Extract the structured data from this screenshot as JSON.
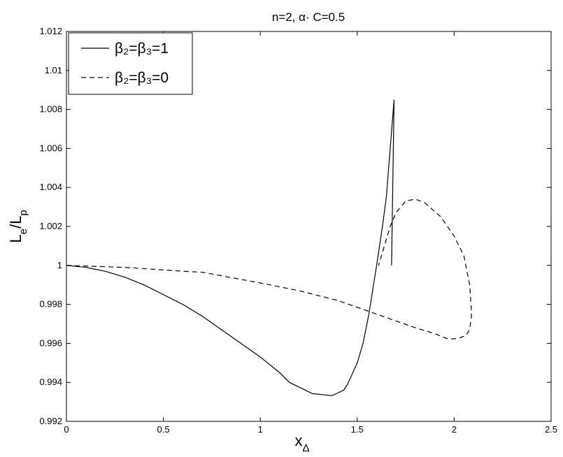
{
  "chart_data": {
    "type": "line",
    "title": "n=2, α· C=0.5",
    "xlabel": [
      "x",
      "Δ"
    ],
    "ylabel": [
      "L",
      "e",
      "/L",
      "p"
    ],
    "xlim": [
      0,
      2.5
    ],
    "xticks": [
      0,
      0.5,
      1,
      1.5,
      2,
      2.5
    ],
    "ylim": [
      0.992,
      1.012
    ],
    "yticks": [
      0.992,
      0.994,
      0.996,
      0.998,
      1,
      1.002,
      1.004,
      1.006,
      1.008,
      1.01,
      1.012
    ],
    "legend": "upper left",
    "series": [
      {
        "name": "β₂=β₃=1",
        "color": "#000000",
        "dash": "solid",
        "x": [
          0,
          0.1,
          0.2,
          0.3,
          0.4,
          0.5,
          0.6,
          0.7,
          0.8,
          0.9,
          1.0,
          1.1,
          1.15,
          1.27,
          1.37,
          1.43,
          1.45,
          1.5,
          1.53,
          1.56,
          1.6,
          1.63,
          1.65,
          1.67,
          1.69,
          1.677
        ],
        "values": [
          1.0,
          0.9999,
          0.9997,
          0.9994,
          0.999,
          0.9985,
          0.998,
          0.9974,
          0.9967,
          0.996,
          0.9953,
          0.9945,
          0.994,
          0.99342,
          0.99332,
          0.9936,
          0.9939,
          0.995,
          0.996,
          0.9975,
          1.0,
          1.002,
          1.0035,
          1.006,
          1.0085,
          1.0
        ]
      },
      {
        "name": "β₂=β₃=0",
        "color": "#000000",
        "dash": "dashed",
        "x": [
          0,
          0.3,
          0.6,
          0.7,
          1.0,
          1.2,
          1.4,
          1.6,
          1.8,
          1.9,
          1.97,
          2.02,
          2.06,
          2.08,
          2.09,
          2.08,
          2.05,
          2.0,
          1.93,
          1.85,
          1.8,
          1.75,
          1.7,
          1.67,
          1.64,
          1.61
        ],
        "values": [
          1.0,
          0.9999,
          0.9997,
          0.99965,
          0.9991,
          0.9987,
          0.9982,
          0.9975,
          0.9968,
          0.9965,
          0.99622,
          0.99625,
          0.9964,
          0.9967,
          0.9975,
          0.999,
          1.0005,
          1.0015,
          1.0025,
          1.0032,
          1.0034,
          1.0033,
          1.0027,
          1.002,
          1.001,
          1.0
        ]
      }
    ]
  }
}
